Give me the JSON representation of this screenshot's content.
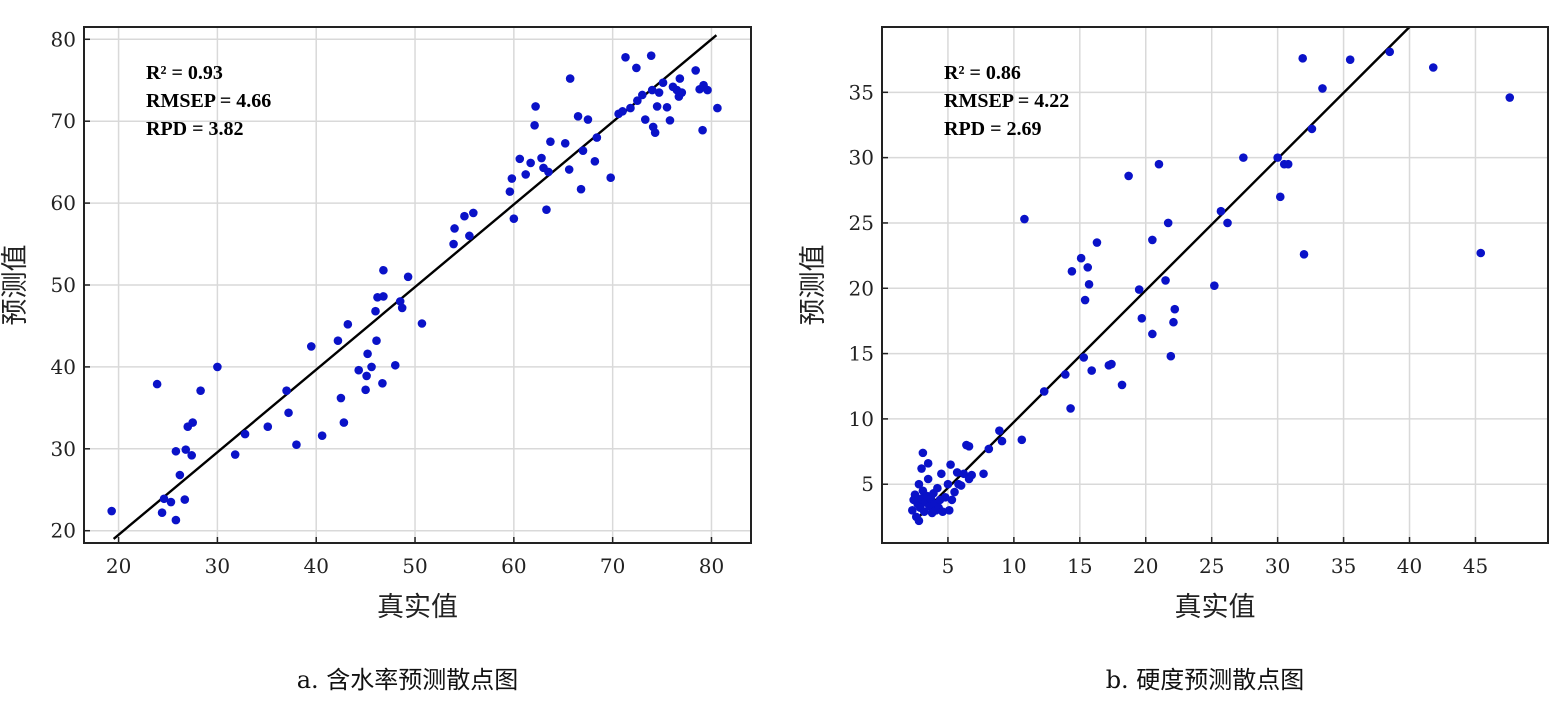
{
  "chart_data": [
    {
      "type": "scatter",
      "caption": "a. 含水率预测散点图",
      "xlabel": "真实值",
      "ylabel": "预测值",
      "xlim": [
        16.5,
        84
      ],
      "ylim": [
        18.5,
        81.5
      ],
      "xticks": [
        20,
        30,
        40,
        50,
        60,
        70,
        80
      ],
      "yticks": [
        20,
        30,
        40,
        50,
        60,
        70,
        80
      ],
      "grid": true,
      "marker_color": "#0a12c8",
      "line_color": "#000000",
      "stats": [
        "R² = 0.93",
        "RMSEP = 4.66",
        "RPD = 3.82"
      ],
      "fit_line": [
        [
          19.5,
          19.0
        ],
        [
          80.5,
          80.5
        ]
      ],
      "points": [
        [
          19.3,
          22.4
        ],
        [
          23.9,
          37.9
        ],
        [
          24.4,
          22.2
        ],
        [
          24.6,
          23.9
        ],
        [
          25.3,
          23.5
        ],
        [
          25.8,
          29.7
        ],
        [
          25.8,
          21.3
        ],
        [
          26.2,
          26.8
        ],
        [
          26.7,
          23.8
        ],
        [
          26.8,
          29.9
        ],
        [
          27.0,
          32.7
        ],
        [
          27.4,
          29.2
        ],
        [
          27.5,
          33.2
        ],
        [
          28.3,
          37.1
        ],
        [
          30.0,
          40.0
        ],
        [
          31.8,
          29.3
        ],
        [
          32.8,
          31.8
        ],
        [
          35.1,
          32.7
        ],
        [
          37.0,
          37.1
        ],
        [
          37.2,
          34.4
        ],
        [
          38.0,
          30.5
        ],
        [
          39.5,
          42.5
        ],
        [
          40.6,
          31.6
        ],
        [
          42.2,
          43.2
        ],
        [
          42.5,
          36.2
        ],
        [
          42.8,
          33.2
        ],
        [
          43.2,
          45.2
        ],
        [
          44.3,
          39.6
        ],
        [
          45.0,
          37.2
        ],
        [
          45.1,
          38.9
        ],
        [
          45.2,
          41.6
        ],
        [
          45.6,
          40.0
        ],
        [
          46.0,
          46.8
        ],
        [
          46.1,
          43.2
        ],
        [
          46.2,
          48.5
        ],
        [
          46.7,
          38.0
        ],
        [
          46.8,
          48.6
        ],
        [
          46.8,
          51.8
        ],
        [
          48.0,
          40.2
        ],
        [
          48.5,
          48.0
        ],
        [
          48.7,
          47.2
        ],
        [
          49.3,
          51.0
        ],
        [
          50.7,
          45.3
        ],
        [
          53.9,
          55.0
        ],
        [
          54.0,
          56.9
        ],
        [
          55.0,
          58.4
        ],
        [
          55.5,
          56.0
        ],
        [
          55.9,
          58.8
        ],
        [
          59.6,
          61.4
        ],
        [
          59.8,
          63.0
        ],
        [
          60.0,
          58.1
        ],
        [
          60.6,
          65.4
        ],
        [
          61.2,
          63.5
        ],
        [
          61.7,
          64.9
        ],
        [
          62.1,
          69.5
        ],
        [
          62.2,
          71.8
        ],
        [
          62.8,
          65.5
        ],
        [
          63.0,
          64.3
        ],
        [
          63.3,
          59.2
        ],
        [
          63.5,
          63.8
        ],
        [
          63.7,
          67.5
        ],
        [
          65.2,
          67.3
        ],
        [
          65.6,
          64.1
        ],
        [
          65.7,
          75.2
        ],
        [
          66.5,
          70.6
        ],
        [
          66.8,
          61.7
        ],
        [
          67.0,
          66.4
        ],
        [
          67.5,
          70.2
        ],
        [
          68.2,
          65.1
        ],
        [
          68.4,
          68.0
        ],
        [
          69.8,
          63.1
        ],
        [
          70.6,
          70.9
        ],
        [
          71.0,
          71.2
        ],
        [
          71.3,
          77.8
        ],
        [
          71.8,
          71.6
        ],
        [
          72.4,
          76.5
        ],
        [
          72.5,
          72.5
        ],
        [
          73.0,
          73.2
        ],
        [
          73.3,
          70.2
        ],
        [
          73.9,
          78.0
        ],
        [
          74.0,
          73.8
        ],
        [
          74.1,
          69.3
        ],
        [
          74.3,
          68.6
        ],
        [
          74.5,
          71.8
        ],
        [
          74.7,
          73.5
        ],
        [
          75.1,
          74.7
        ],
        [
          75.5,
          71.7
        ],
        [
          75.8,
          70.1
        ],
        [
          76.1,
          74.2
        ],
        [
          76.5,
          73.8
        ],
        [
          76.7,
          73.0
        ],
        [
          76.8,
          75.2
        ],
        [
          77.0,
          73.5
        ],
        [
          78.4,
          76.2
        ],
        [
          78.8,
          73.9
        ],
        [
          79.1,
          68.9
        ],
        [
          79.2,
          74.4
        ],
        [
          79.6,
          73.8
        ],
        [
          80.6,
          71.6
        ]
      ]
    },
    {
      "type": "scatter",
      "caption": "b. 硬度预测散点图",
      "xlabel": "真实值",
      "ylabel": "预测值",
      "xlim": [
        0,
        50.5
      ],
      "ylim": [
        0.5,
        40
      ],
      "xticks": [
        5,
        10,
        15,
        20,
        25,
        30,
        35,
        40,
        45
      ],
      "yticks": [
        5,
        10,
        15,
        20,
        25,
        30,
        35
      ],
      "grid": true,
      "marker_color": "#0a12c8",
      "line_color": "#000000",
      "stats": [
        "R² = 0.86",
        "RMSEP = 4.22",
        "RPD = 2.69"
      ],
      "fit_line": [
        [
          2.5,
          2.2
        ],
        [
          40.0,
          40.0
        ]
      ],
      "points": [
        [
          2.3,
          3.0
        ],
        [
          2.4,
          3.8
        ],
        [
          2.5,
          4.2
        ],
        [
          2.6,
          2.5
        ],
        [
          2.7,
          3.5
        ],
        [
          2.8,
          5.0
        ],
        [
          2.8,
          2.2
        ],
        [
          2.9,
          3.2
        ],
        [
          3.0,
          3.9
        ],
        [
          3.0,
          6.2
        ],
        [
          3.1,
          4.5
        ],
        [
          3.1,
          7.4
        ],
        [
          3.2,
          2.9
        ],
        [
          3.3,
          3.6
        ],
        [
          3.4,
          4.1
        ],
        [
          3.5,
          5.4
        ],
        [
          3.5,
          6.6
        ],
        [
          3.6,
          3.3
        ],
        [
          3.7,
          3.9
        ],
        [
          3.8,
          2.8
        ],
        [
          3.9,
          4.3
        ],
        [
          4.0,
          3.5
        ],
        [
          4.1,
          3.0
        ],
        [
          4.2,
          4.7
        ],
        [
          4.3,
          3.2
        ],
        [
          4.4,
          3.8
        ],
        [
          4.5,
          5.8
        ],
        [
          4.6,
          2.9
        ],
        [
          4.8,
          4.0
        ],
        [
          5.0,
          5.0
        ],
        [
          5.1,
          3.0
        ],
        [
          5.2,
          6.5
        ],
        [
          5.3,
          3.8
        ],
        [
          5.5,
          4.4
        ],
        [
          5.7,
          5.9
        ],
        [
          5.8,
          5.0
        ],
        [
          6.0,
          4.9
        ],
        [
          6.2,
          5.8
        ],
        [
          6.4,
          8.0
        ],
        [
          6.6,
          7.9
        ],
        [
          6.6,
          5.4
        ],
        [
          6.8,
          5.7
        ],
        [
          7.7,
          5.8
        ],
        [
          8.1,
          7.7
        ],
        [
          8.9,
          9.1
        ],
        [
          9.1,
          8.3
        ],
        [
          10.6,
          8.4
        ],
        [
          10.8,
          25.3
        ],
        [
          12.3,
          12.1
        ],
        [
          13.9,
          13.4
        ],
        [
          14.3,
          10.8
        ],
        [
          14.4,
          21.3
        ],
        [
          15.1,
          22.3
        ],
        [
          15.3,
          14.7
        ],
        [
          15.4,
          19.1
        ],
        [
          15.6,
          21.6
        ],
        [
          15.7,
          20.3
        ],
        [
          15.9,
          13.7
        ],
        [
          16.3,
          23.5
        ],
        [
          17.2,
          14.1
        ],
        [
          17.4,
          14.2
        ],
        [
          18.2,
          12.6
        ],
        [
          18.7,
          28.6
        ],
        [
          19.5,
          19.9
        ],
        [
          19.7,
          17.7
        ],
        [
          20.5,
          16.5
        ],
        [
          20.5,
          23.7
        ],
        [
          21.0,
          29.5
        ],
        [
          21.5,
          20.6
        ],
        [
          21.7,
          25.0
        ],
        [
          21.9,
          14.8
        ],
        [
          22.1,
          17.4
        ],
        [
          22.2,
          18.4
        ],
        [
          25.2,
          20.2
        ],
        [
          25.7,
          25.9
        ],
        [
          26.2,
          25.0
        ],
        [
          27.4,
          30.0
        ],
        [
          30.0,
          30.0
        ],
        [
          30.2,
          27.0
        ],
        [
          30.5,
          29.5
        ],
        [
          30.8,
          29.5
        ],
        [
          31.9,
          37.6
        ],
        [
          32.0,
          22.6
        ],
        [
          32.6,
          32.2
        ],
        [
          33.4,
          35.3
        ],
        [
          35.5,
          37.5
        ],
        [
          38.5,
          38.1
        ],
        [
          41.8,
          36.9
        ],
        [
          45.4,
          22.7
        ],
        [
          47.6,
          34.6
        ]
      ]
    }
  ]
}
